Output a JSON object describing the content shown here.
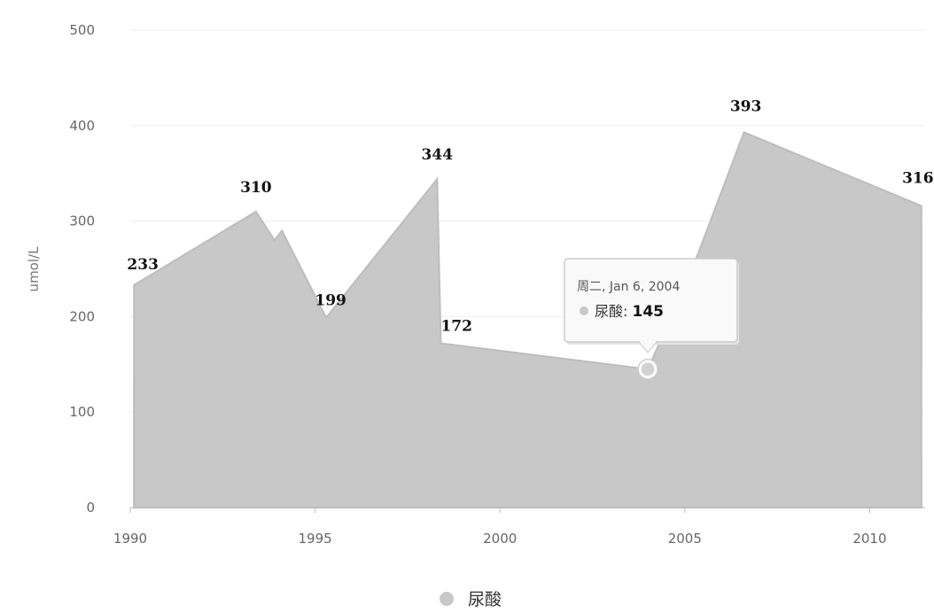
{
  "chart_data": {
    "type": "area",
    "ylabel": "umol/L",
    "xlim": [
      1990,
      2011.5
    ],
    "ylim": [
      0,
      500
    ],
    "y_ticks": [
      "0",
      "100",
      "200",
      "300",
      "400",
      "500"
    ],
    "x_ticks": [
      "1990",
      "1995",
      "2000",
      "2005",
      "2010"
    ],
    "grid": true,
    "series": [
      {
        "name": "尿酸",
        "color": "#c8c8c8",
        "points": [
          {
            "x": 1990.1,
            "y": 233,
            "label": "233"
          },
          {
            "x": 1993.4,
            "y": 310,
            "label": "310"
          },
          {
            "x": 1993.9,
            "y": 280
          },
          {
            "x": 1994.1,
            "y": 290
          },
          {
            "x": 1995.3,
            "y": 199,
            "label": "199"
          },
          {
            "x": 1998.3,
            "y": 344,
            "label": "344"
          },
          {
            "x": 1998.4,
            "y": 172,
            "label": "172"
          },
          {
            "x": 2004.0,
            "y": 145
          },
          {
            "x": 2005.2,
            "y": 250
          },
          {
            "x": 2006.6,
            "y": 393,
            "label": "393"
          },
          {
            "x": 2011.4,
            "y": 316,
            "label": "316"
          }
        ]
      }
    ],
    "legend": {
      "position": "bottom-center"
    },
    "tooltip": {
      "date": "周二, Jan 6, 2004",
      "series_name": "尿酸",
      "value": "145",
      "point_x": 2004.0,
      "point_y": 145
    }
  }
}
